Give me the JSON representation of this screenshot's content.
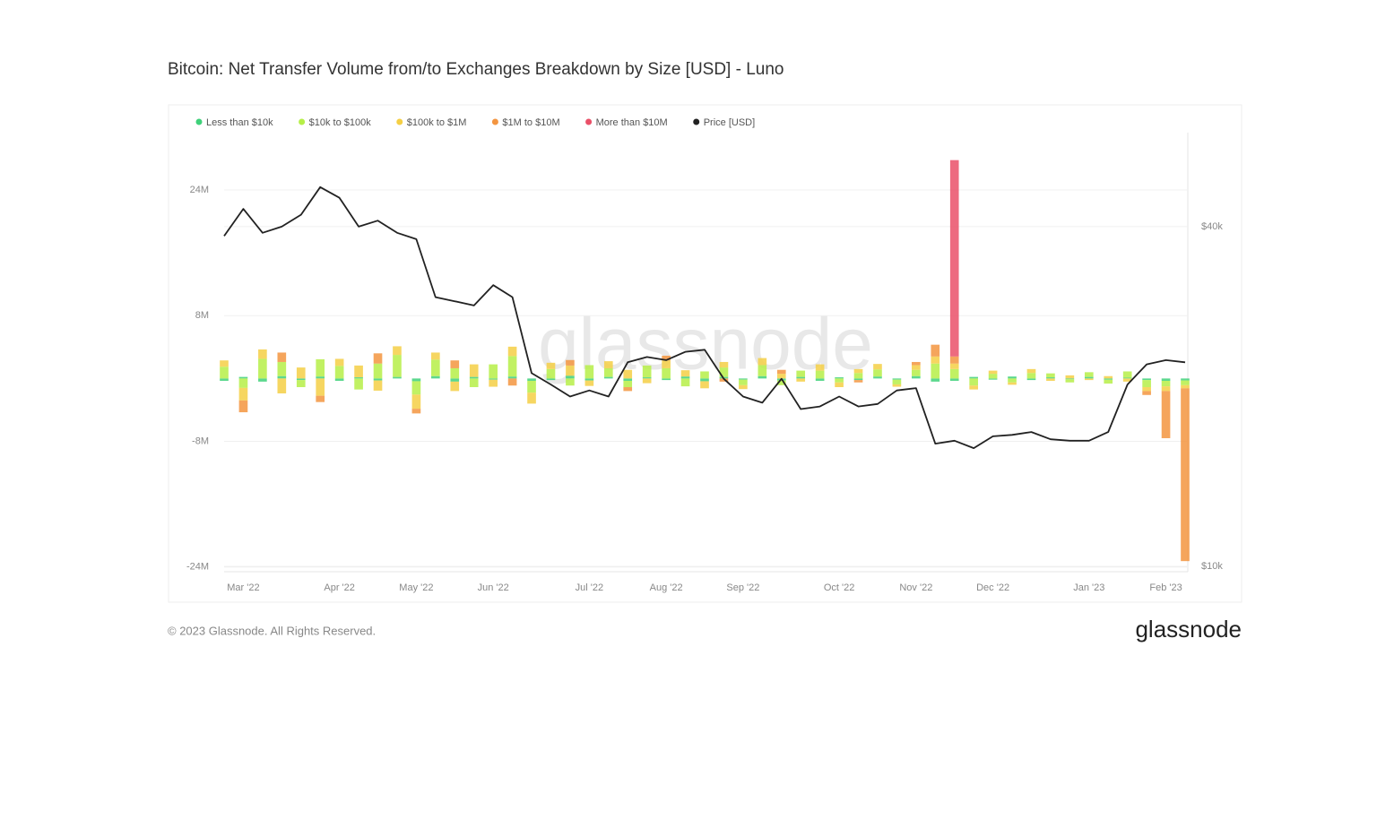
{
  "chart_data": {
    "type": "bar",
    "title": "Bitcoin: Net Transfer Volume from/to Exchanges Breakdown by Size [USD] - Luno",
    "watermark": "glassnode",
    "footer": "© 2023 Glassnode. All Rights Reserved.",
    "logo": "glassnode",
    "categories": [
      null,
      "Mar '22",
      null,
      null,
      null,
      null,
      "Apr '22",
      null,
      null,
      null,
      "May '22",
      null,
      null,
      null,
      "Jun '22",
      null,
      null,
      null,
      null,
      "Jul '22",
      null,
      null,
      null,
      "Aug '22",
      null,
      null,
      null,
      "Sep '22",
      null,
      null,
      null,
      null,
      "Oct '22",
      null,
      null,
      null,
      "Nov '22",
      null,
      null,
      null,
      "Dec '22",
      null,
      null,
      null,
      null,
      "Jan '23",
      null,
      null,
      null,
      "Feb '23",
      null
    ],
    "ylim": [
      -24600000,
      31300000
    ],
    "yticks": [
      {
        "value": -24000000,
        "label": "-24M"
      },
      {
        "value": -8000000,
        "label": "-8M"
      },
      {
        "value": 8000000,
        "label": "8M"
      },
      {
        "value": 24000000,
        "label": "24M"
      }
    ],
    "y2lim": [
      9785,
      58700
    ],
    "y2ticks": [
      {
        "value": 10000,
        "label": "$10k"
      },
      {
        "value": 40000,
        "label": "$40k"
      }
    ],
    "y2scale": "log",
    "grid": true,
    "legend": "top",
    "series": [
      {
        "name": "Less than $10k",
        "color": "#3fd17a",
        "values": [
          -300000,
          200000,
          -400000,
          300000,
          -200000,
          250000,
          -300000,
          150000,
          -250000,
          200000,
          -350000,
          300000,
          -400000,
          200000,
          -150000,
          250000,
          -300000,
          -200000,
          350000,
          -250000,
          200000,
          -300000,
          150000,
          -200000,
          250000,
          -350000,
          200000,
          -150000,
          300000,
          -250000,
          200000,
          -300000,
          150000,
          -200000,
          250000,
          -150000,
          300000,
          -400000,
          -300000,
          200000,
          -150000,
          250000,
          -200000,
          150000,
          -100000,
          200000,
          -150000,
          100000,
          -200000,
          -300000,
          -250000
        ]
      },
      {
        "name": "$10k to $100k",
        "color": "#b6ef48",
        "values": [
          1500000,
          -1200000,
          2500000,
          1800000,
          -900000,
          2200000,
          1600000,
          -1400000,
          1900000,
          2800000,
          -1700000,
          2100000,
          1300000,
          -1100000,
          1800000,
          2600000,
          -1500000,
          1200000,
          -900000,
          1700000,
          1100000,
          -800000,
          1500000,
          1300000,
          -1000000,
          900000,
          1200000,
          -700000,
          1400000,
          -600000,
          800000,
          1000000,
          -500000,
          700000,
          900000,
          -600000,
          800000,
          1900000,
          1200000,
          -900000,
          600000,
          -500000,
          700000,
          500000,
          -400000,
          600000,
          -500000,
          800000,
          -900000,
          -700000,
          -600000
        ]
      },
      {
        "name": "$100k to $1M",
        "color": "#f5cf45",
        "values": [
          800000,
          -1600000,
          1200000,
          -1900000,
          1400000,
          -2200000,
          900000,
          1500000,
          -1300000,
          1100000,
          -1800000,
          900000,
          -1200000,
          1600000,
          -900000,
          1200000,
          -1400000,
          800000,
          1300000,
          -700000,
          900000,
          1100000,
          -600000,
          1000000,
          800000,
          -900000,
          700000,
          -500000,
          900000,
          600000,
          -400000,
          800000,
          -600000,
          500000,
          700000,
          -300000,
          600000,
          900000,
          700000,
          -500000,
          400000,
          -300000,
          500000,
          -300000,
          400000,
          -200000,
          300000,
          -400000,
          -500000,
          -600000,
          -400000
        ]
      },
      {
        "name": "$1M to $10M",
        "color": "#f39540",
        "values": [
          0,
          -1500000,
          0,
          1200000,
          0,
          -800000,
          0,
          0,
          1300000,
          0,
          -600000,
          0,
          1000000,
          0,
          0,
          -900000,
          0,
          0,
          700000,
          0,
          0,
          -500000,
          0,
          600000,
          0,
          0,
          -400000,
          0,
          0,
          500000,
          0,
          0,
          0,
          -300000,
          0,
          0,
          400000,
          1500000,
          900000,
          0,
          0,
          0,
          0,
          0,
          0,
          0,
          0,
          0,
          -500000,
          -6000000,
          -22000000
        ]
      },
      {
        "name": "More than $10M",
        "color": "#ea5068",
        "values": [
          0,
          0,
          0,
          0,
          0,
          0,
          0,
          0,
          0,
          0,
          0,
          0,
          0,
          0,
          0,
          0,
          0,
          0,
          0,
          0,
          0,
          0,
          0,
          0,
          0,
          0,
          0,
          0,
          0,
          0,
          0,
          0,
          0,
          0,
          0,
          0,
          0,
          0,
          25000000,
          0,
          0,
          0,
          0,
          0,
          0,
          0,
          0,
          0,
          0,
          0,
          0
        ]
      },
      {
        "name": "Price [USD]",
        "color": "#222222",
        "type": "line",
        "axis": "y2",
        "values": [
          38500,
          43000,
          39000,
          40000,
          42000,
          47000,
          45000,
          40000,
          41000,
          39000,
          38000,
          30000,
          29500,
          29000,
          31500,
          30000,
          22000,
          21000,
          20000,
          20500,
          20000,
          23000,
          23500,
          23200,
          24000,
          24200,
          21500,
          20000,
          19500,
          21500,
          19000,
          19200,
          20000,
          19200,
          19400,
          20500,
          20700,
          16500,
          16700,
          16200,
          17000,
          17100,
          17300,
          16800,
          16700,
          16700,
          17300,
          21000,
          22800,
          23200,
          23000
        ]
      }
    ]
  }
}
